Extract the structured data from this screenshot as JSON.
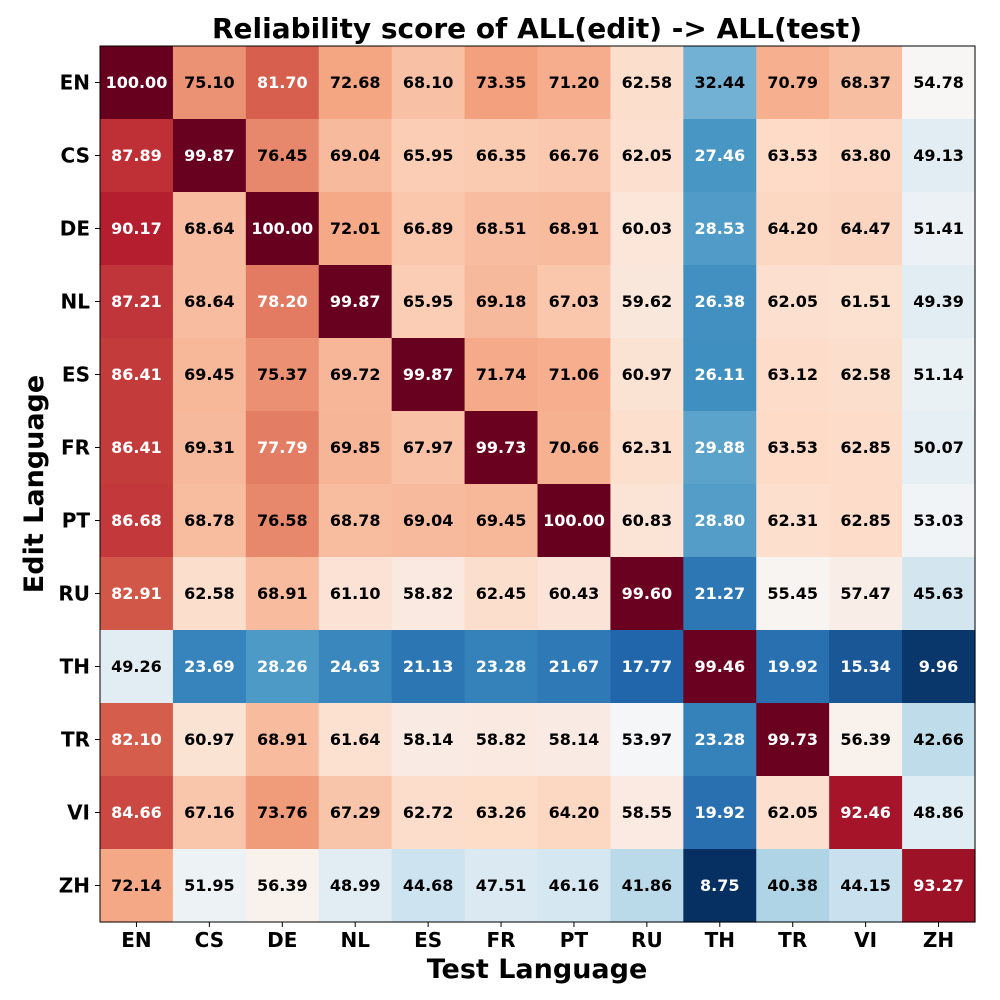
{
  "chart_data": {
    "type": "heatmap",
    "title": "Reliability score of ALL(edit) -> ALL(test)",
    "xlabel": "Test Language",
    "ylabel": "Edit Language",
    "x_categories": [
      "EN",
      "CS",
      "DE",
      "NL",
      "ES",
      "FR",
      "PT",
      "RU",
      "TH",
      "TR",
      "VI",
      "ZH"
    ],
    "y_categories": [
      "EN",
      "CS",
      "DE",
      "NL",
      "ES",
      "FR",
      "PT",
      "RU",
      "TH",
      "TR",
      "VI",
      "ZH"
    ],
    "colormap": "RdBu_r",
    "color_range": [
      8.75,
      100.0
    ],
    "values": [
      [
        100.0,
        75.1,
        81.7,
        72.68,
        68.1,
        73.35,
        71.2,
        62.58,
        32.44,
        70.79,
        68.37,
        54.78
      ],
      [
        87.89,
        99.87,
        76.45,
        69.04,
        65.95,
        66.35,
        66.76,
        62.05,
        27.46,
        63.53,
        63.8,
        49.13
      ],
      [
        90.17,
        68.64,
        100.0,
        72.01,
        66.89,
        68.51,
        68.91,
        60.03,
        28.53,
        64.2,
        64.47,
        51.41
      ],
      [
        87.21,
        68.64,
        78.2,
        99.87,
        65.95,
        69.18,
        67.03,
        59.62,
        26.38,
        62.05,
        61.51,
        49.39
      ],
      [
        86.41,
        69.45,
        75.37,
        69.72,
        99.87,
        71.74,
        71.06,
        60.97,
        26.11,
        63.12,
        62.58,
        51.14
      ],
      [
        86.41,
        69.31,
        77.79,
        69.85,
        67.97,
        99.73,
        70.66,
        62.31,
        29.88,
        63.53,
        62.85,
        50.07
      ],
      [
        86.68,
        68.78,
        76.58,
        68.78,
        69.04,
        69.45,
        100.0,
        60.83,
        28.8,
        62.31,
        62.85,
        53.03
      ],
      [
        82.91,
        62.58,
        68.91,
        61.1,
        58.82,
        62.45,
        60.43,
        99.6,
        21.27,
        55.45,
        57.47,
        45.63
      ],
      [
        49.26,
        23.69,
        28.26,
        24.63,
        21.13,
        23.28,
        21.67,
        17.77,
        99.46,
        19.92,
        15.34,
        9.96
      ],
      [
        82.1,
        60.97,
        68.91,
        61.64,
        58.14,
        58.82,
        58.14,
        53.97,
        23.28,
        99.73,
        56.39,
        42.66
      ],
      [
        84.66,
        67.16,
        73.76,
        67.29,
        62.72,
        63.26,
        64.2,
        58.55,
        19.92,
        62.05,
        92.46,
        48.86
      ],
      [
        72.14,
        51.95,
        56.39,
        48.99,
        44.68,
        47.51,
        46.16,
        41.86,
        8.75,
        40.38,
        44.15,
        93.27
      ]
    ],
    "grid": false,
    "legend": "none"
  }
}
